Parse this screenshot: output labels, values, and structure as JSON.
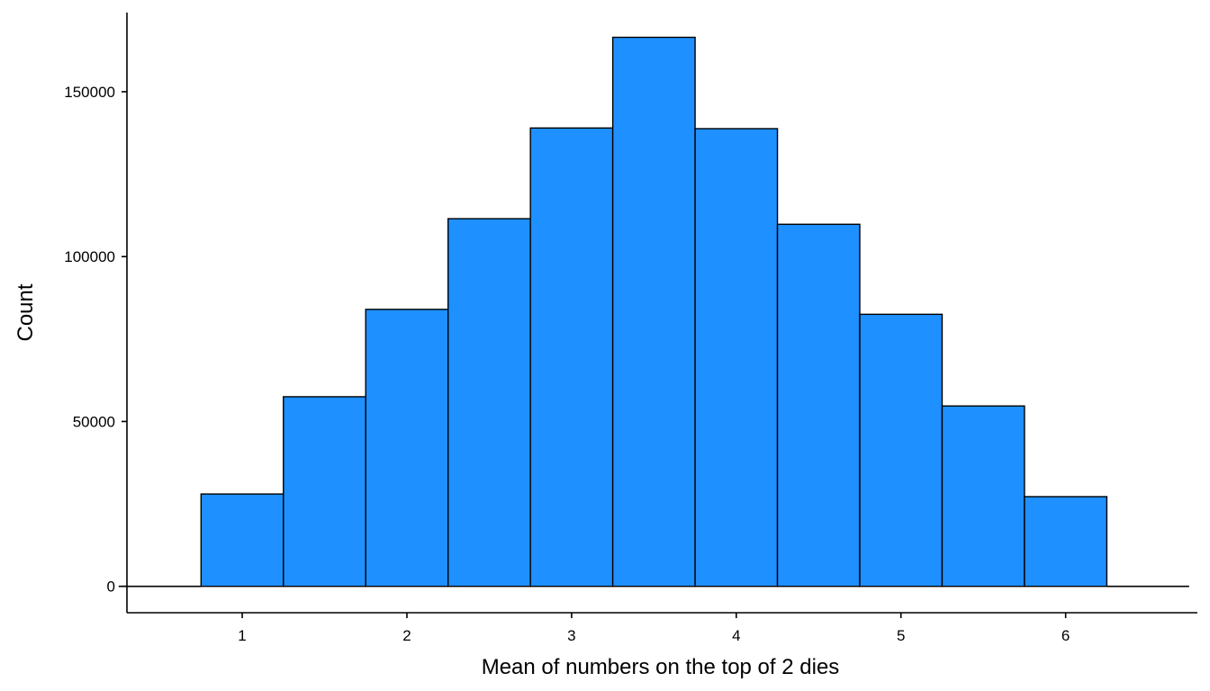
{
  "chart_data": {
    "type": "bar",
    "xlabel": "Mean of numbers on the top of 2 dies",
    "ylabel": "Count",
    "x_ticks": [
      1,
      2,
      3,
      4,
      5,
      6
    ],
    "y_ticks": [
      0,
      50000,
      100000,
      150000
    ],
    "xlim": [
      0.3,
      6.8
    ],
    "ylim": [
      -8000,
      174000
    ],
    "bin_width": 0.5,
    "bins": [
      {
        "center": 0.5,
        "value": 0
      },
      {
        "center": 1.0,
        "value": 28000
      },
      {
        "center": 1.5,
        "value": 57500
      },
      {
        "center": 2.0,
        "value": 84000
      },
      {
        "center": 2.5,
        "value": 111500
      },
      {
        "center": 3.0,
        "value": 139000
      },
      {
        "center": 3.5,
        "value": 166500
      },
      {
        "center": 4.0,
        "value": 138800
      },
      {
        "center": 4.5,
        "value": 109800
      },
      {
        "center": 5.0,
        "value": 82500
      },
      {
        "center": 5.5,
        "value": 54700
      },
      {
        "center": 6.0,
        "value": 27200
      },
      {
        "center": 6.5,
        "value": 0
      }
    ],
    "bar_fill": "#1E90FF",
    "bar_outline": "#000000",
    "grid": false,
    "legend": "none"
  }
}
